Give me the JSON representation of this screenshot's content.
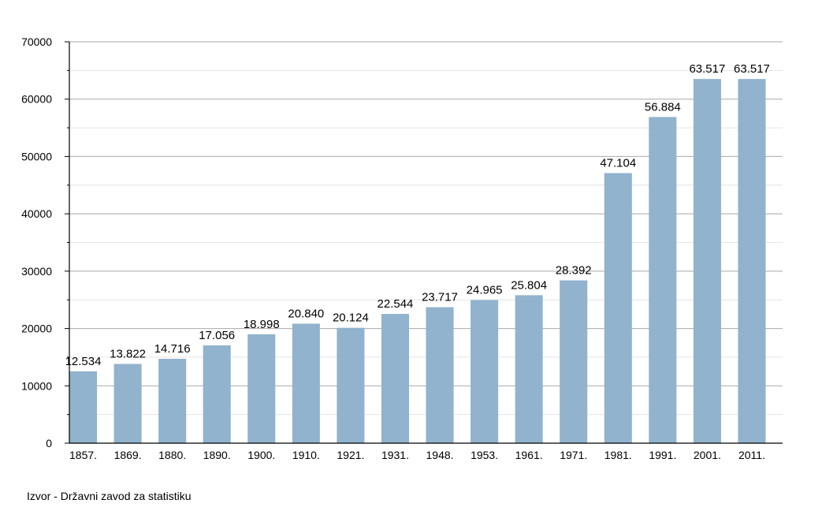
{
  "chart_data": {
    "type": "bar",
    "title": "",
    "xlabel": "",
    "ylabel": "",
    "categories": [
      "1857.",
      "1869.",
      "1880.",
      "1890.",
      "1900.",
      "1910.",
      "1921.",
      "1931.",
      "1948.",
      "1953.",
      "1961.",
      "1971.",
      "1981.",
      "1991.",
      "2001.",
      "2011."
    ],
    "values": [
      12534,
      13822,
      14716,
      17056,
      18998,
      20840,
      20124,
      22544,
      23717,
      24965,
      25804,
      28392,
      47104,
      56884,
      63517,
      63517
    ],
    "data_labels": [
      "12.534",
      "13.822",
      "14.716",
      "17.056",
      "18.998",
      "20.840",
      "20.124",
      "22.544",
      "23.717",
      "24.965",
      "25.804",
      "28.392",
      "47.104",
      "56.884",
      "63.517",
      "63.517"
    ],
    "ylim": [
      0,
      70000
    ],
    "yticks": [
      "0",
      "10000",
      "20000",
      "30000",
      "40000",
      "50000",
      "60000",
      "70000"
    ],
    "grid": true,
    "legend": "none",
    "colors": {
      "bar": "#91b3cd",
      "major_grid": "#a9a9a9",
      "minor_grid": "#e4e4e4",
      "axis": "#000000"
    }
  },
  "source_note": "Izvor - Državni zavod za statistiku"
}
